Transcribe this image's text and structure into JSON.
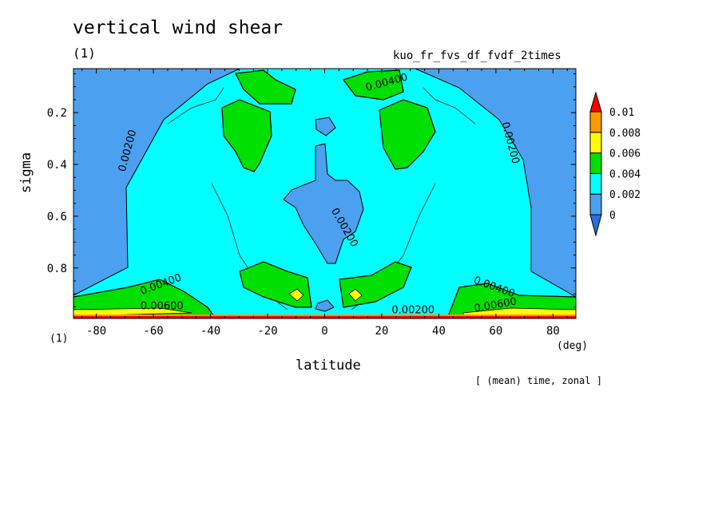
{
  "header": {
    "title": "vertical wind shear",
    "panel_number": "(1)",
    "run_name": "kuo_fr_fvs_df_fvdf_2times"
  },
  "footer": {
    "x_unit": "(deg)",
    "y_unit": "(1)",
    "average_note": "[ (mean) time, zonal ]"
  },
  "colors": {
    "lt_0": "#3e8ee8",
    "0_0.002": "#4ba0f0",
    "0.002_0.004": "#00ffff",
    "0.004_0.006": "#00e000",
    "0.006_0.008": "#ffff00",
    "0.008_0.01": "#ff9900",
    "gt_0.01": "#ff0000",
    "below_zero": "#2a6fdb"
  },
  "chart_data": {
    "type": "contour",
    "title": "vertical wind shear",
    "xlabel": "latitude",
    "ylabel": "sigma",
    "xlim": [
      -88,
      88
    ],
    "ylim": [
      0.995,
      0.03
    ],
    "x_ticks": [
      -80,
      -60,
      -40,
      -20,
      0,
      20,
      40,
      60,
      80
    ],
    "x_tick_labels": [
      "-80",
      "-60",
      "-40",
      "-20",
      "0",
      "20",
      "40",
      "60",
      "80"
    ],
    "y_ticks": [
      0.2,
      0.4,
      0.6,
      0.8
    ],
    "y_tick_labels": [
      "0.2",
      "0.4",
      "0.6",
      "0.8"
    ],
    "colorbar_levels": [
      0,
      0.002,
      0.004,
      0.006,
      0.008,
      0.01
    ],
    "colorbar_labels": [
      "0",
      "0.002",
      "0.004",
      "0.006",
      "0.008",
      "0.01"
    ],
    "contour_labels": [
      {
        "text": "0.00200",
        "x": -68,
        "y": 0.35,
        "angle": -75
      },
      {
        "text": "0.00200",
        "x": 64,
        "y": 0.32,
        "angle": 75
      },
      {
        "text": "0.00200",
        "x": 6,
        "y": 0.65,
        "angle": 60
      },
      {
        "text": "0.00200",
        "x": 31,
        "y": 0.975,
        "angle": 0
      },
      {
        "text": "0.00400",
        "x": 22,
        "y": 0.095,
        "angle": -15
      },
      {
        "text": "0.00400",
        "x": -57,
        "y": 0.875,
        "angle": -20
      },
      {
        "text": "0.00400",
        "x": 59,
        "y": 0.885,
        "angle": 20
      },
      {
        "text": "0.00600",
        "x": -57,
        "y": 0.96,
        "angle": 0
      },
      {
        "text": "0.00600",
        "x": 60,
        "y": 0.955,
        "angle": -10
      }
    ]
  }
}
